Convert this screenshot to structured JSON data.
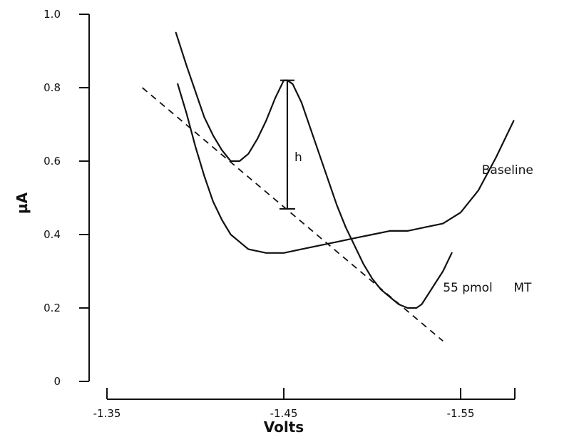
{
  "chart_data": {
    "type": "line",
    "xlabel": "Volts",
    "ylabel": "µA",
    "xlim": [
      -1.31,
      -1.59
    ],
    "ylim": [
      0,
      1.0
    ],
    "x_ticks": [
      -1.35,
      -1.45,
      -1.55
    ],
    "x_tick_labels": [
      "-1.35",
      "-1.45",
      "-1.55"
    ],
    "y_ticks": [
      0,
      0.2,
      0.4,
      0.6,
      0.8,
      1.0
    ],
    "y_tick_labels": [
      "0",
      "0.2",
      "0.4",
      "0.6",
      "0.8",
      "1.0"
    ],
    "grid": false,
    "series": [
      {
        "name": "55 pmol MT",
        "x": [
          -1.389,
          -1.395,
          -1.4,
          -1.405,
          -1.41,
          -1.415,
          -1.42,
          -1.425,
          -1.43,
          -1.435,
          -1.44,
          -1.445,
          -1.448,
          -1.45,
          -1.452,
          -1.455,
          -1.46,
          -1.465,
          -1.47,
          -1.475,
          -1.48,
          -1.485,
          -1.49,
          -1.495,
          -1.5,
          -1.505,
          -1.51,
          -1.515,
          -1.52,
          -1.525,
          -1.528,
          -1.532,
          -1.536,
          -1.54,
          -1.545
        ],
        "y": [
          0.95,
          0.86,
          0.79,
          0.72,
          0.67,
          0.63,
          0.6,
          0.6,
          0.62,
          0.66,
          0.71,
          0.77,
          0.8,
          0.82,
          0.82,
          0.81,
          0.76,
          0.69,
          0.62,
          0.55,
          0.48,
          0.42,
          0.37,
          0.32,
          0.28,
          0.25,
          0.23,
          0.21,
          0.2,
          0.2,
          0.21,
          0.24,
          0.27,
          0.3,
          0.35
        ]
      },
      {
        "name": "Baseline",
        "x": [
          -1.39,
          -1.395,
          -1.4,
          -1.405,
          -1.41,
          -1.415,
          -1.42,
          -1.425,
          -1.43,
          -1.44,
          -1.45,
          -1.46,
          -1.47,
          -1.48,
          -1.49,
          -1.5,
          -1.51,
          -1.52,
          -1.53,
          -1.54,
          -1.55,
          -1.56,
          -1.57,
          -1.58
        ],
        "y": [
          0.81,
          0.73,
          0.64,
          0.56,
          0.49,
          0.44,
          0.4,
          0.38,
          0.36,
          0.35,
          0.35,
          0.36,
          0.37,
          0.38,
          0.39,
          0.4,
          0.41,
          0.41,
          0.42,
          0.43,
          0.46,
          0.52,
          0.61,
          0.71
        ]
      }
    ],
    "tangent_line": {
      "x": [
        -1.37,
        -1.54
      ],
      "y": [
        0.8,
        0.11
      ]
    },
    "peak_height_marker": {
      "x": -1.452,
      "y_top": 0.82,
      "y_bottom": 0.47,
      "label": "h"
    },
    "annotations": [
      {
        "text": "Baseline",
        "x": -1.562,
        "y": 0.565
      },
      {
        "text": "55 pmol",
        "x": -1.54,
        "y": 0.245
      },
      {
        "text": "MT",
        "x": -1.58,
        "y": 0.245
      }
    ]
  }
}
